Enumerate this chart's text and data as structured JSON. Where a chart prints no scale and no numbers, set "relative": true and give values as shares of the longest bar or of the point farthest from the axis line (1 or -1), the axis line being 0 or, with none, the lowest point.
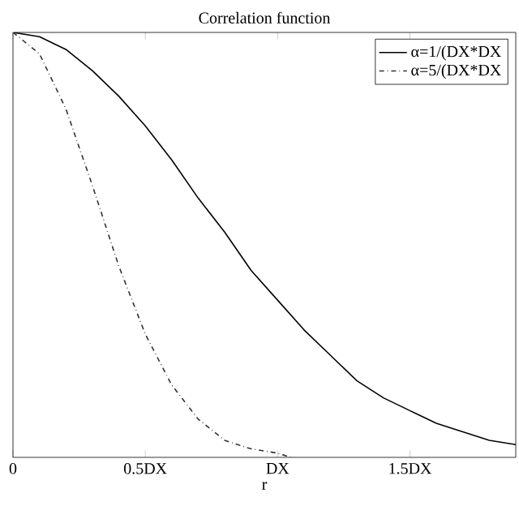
{
  "chart_data": {
    "type": "line",
    "title": "Correlation function",
    "xlabel": "r",
    "relative": true,
    "legend": "top right",
    "xlim": [
      0,
      1.9
    ],
    "xticks": [
      0,
      {
        "value": 0.5,
        "label": "0.5DX"
      },
      {
        "value": 1,
        "label": "DX"
      },
      {
        "value": 1.5,
        "label": "1.5DX"
      }
    ],
    "series": [
      {
        "name": "α=1/(DX*DX",
        "color": "#000000",
        "line_style": "solid",
        "x": [
          0,
          0.1,
          0.2,
          0.3,
          0.4,
          0.5,
          0.6,
          0.7,
          0.8,
          0.9,
          1.0,
          1.1,
          1.2,
          1.3,
          1.4,
          1.5,
          1.6,
          1.7,
          1.8,
          1.9
        ],
        "values": [
          1,
          0.99,
          0.96,
          0.91,
          0.85,
          0.78,
          0.7,
          0.61,
          0.53,
          0.44,
          0.37,
          0.3,
          0.24,
          0.18,
          0.14,
          0.11,
          0.08,
          0.06,
          0.04,
          0.03
        ]
      },
      {
        "name": "α=5/(DX*DX",
        "color": "#333333",
        "line_style": "dashed",
        "x": [
          0,
          0.1,
          0.2,
          0.3,
          0.4,
          0.5,
          0.6,
          0.7,
          0.8,
          0.9,
          1.0,
          1.05
        ],
        "values": [
          1,
          0.95,
          0.82,
          0.64,
          0.45,
          0.29,
          0.17,
          0.09,
          0.04,
          0.02,
          0.01,
          0.0
        ]
      }
    ]
  }
}
